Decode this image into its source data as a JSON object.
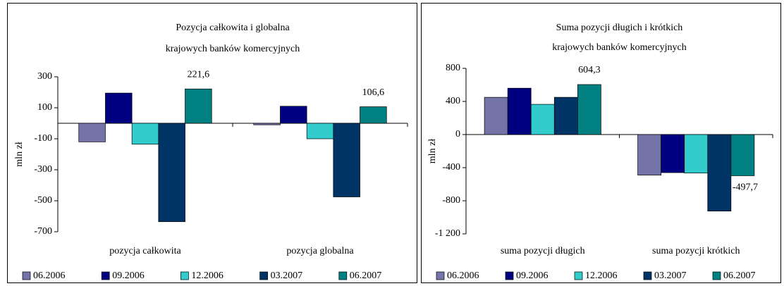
{
  "chart_data": [
    {
      "type": "bar",
      "title": [
        "Pozycja całkowita i globalna",
        "krajowych banków komercyjnych"
      ],
      "y_label": "mln zł",
      "categories": [
        "pozycja całkowita",
        "pozycja globalna"
      ],
      "series": [
        {
          "name": "06.2006",
          "color": "#7474a8",
          "values": [
            -120,
            -10
          ]
        },
        {
          "name": "09.2006",
          "color": "#000080",
          "values": [
            195,
            110
          ]
        },
        {
          "name": "12.2006",
          "color": "#33cccc",
          "values": [
            -135,
            -100
          ]
        },
        {
          "name": "03.2007",
          "color": "#003366",
          "values": [
            -635,
            -475
          ]
        },
        {
          "name": "06.2007",
          "color": "#008080",
          "values": [
            221.6,
            106.6
          ],
          "value_labels": [
            "221,6",
            "106,6"
          ]
        }
      ],
      "ylim": [
        -700,
        300
      ],
      "yticks": [
        300,
        100,
        -100,
        -300,
        -500,
        -700
      ]
    },
    {
      "type": "bar",
      "title": [
        "Suma pozycji długich i krótkich",
        "krajowych banków komercyjnych"
      ],
      "y_label": "mln zł",
      "categories": [
        "suma pozycji długich",
        "suma pozycji krótkich"
      ],
      "series": [
        {
          "name": "06.2006",
          "color": "#7474a8",
          "values": [
            450,
            -490
          ]
        },
        {
          "name": "09.2006",
          "color": "#000080",
          "values": [
            560,
            -460
          ]
        },
        {
          "name": "12.2006",
          "color": "#33cccc",
          "values": [
            365,
            -465
          ]
        },
        {
          "name": "03.2007",
          "color": "#003366",
          "values": [
            450,
            -925
          ]
        },
        {
          "name": "06.2007",
          "color": "#008080",
          "values": [
            604.3,
            -497.7
          ],
          "value_labels": [
            "604,3",
            "-497,7"
          ]
        }
      ],
      "ylim": [
        -1200,
        800
      ],
      "yticks": [
        800,
        400,
        0,
        -400,
        -800,
        {
          "value": -1200,
          "label": "-1 200"
        }
      ]
    }
  ]
}
